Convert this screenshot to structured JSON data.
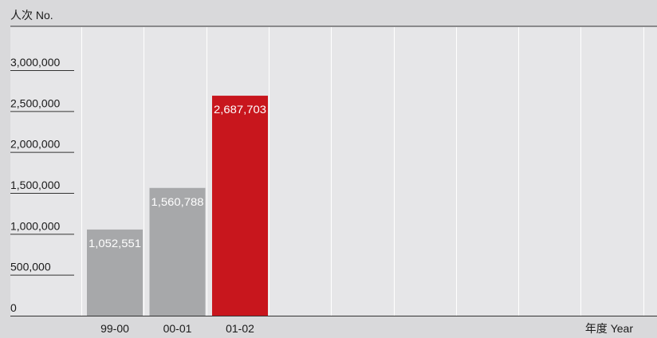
{
  "chart_data": {
    "type": "bar",
    "ylabel": "人次 No.",
    "xlabel": "年度 Year",
    "categories": [
      "99-00",
      "00-01",
      "01-02"
    ],
    "values": [
      1052551,
      1560788,
      2687703
    ],
    "value_labels": [
      "1,052,551",
      "1,560,788",
      "2,687,703"
    ],
    "yticks": [
      0,
      500000,
      1000000,
      1500000,
      2000000,
      2500000,
      3000000
    ],
    "ytick_labels": [
      "0",
      "500,000",
      "1,000,000",
      "1,500,000",
      "2,000,000",
      "2,500,000",
      "3,000,000"
    ],
    "ylim": [
      0,
      3000000
    ],
    "grid": "vertical",
    "colors": {
      "background": "#d9d9db",
      "plot_background": "#e6e6e8",
      "bar_default": "#a7a8aa",
      "bar_highlight": "#c8161d",
      "grid": "#ffffff",
      "axis": "#333333",
      "text": "#1a1a1a",
      "value_label": "#ffffff"
    },
    "highlight_index": 2
  }
}
